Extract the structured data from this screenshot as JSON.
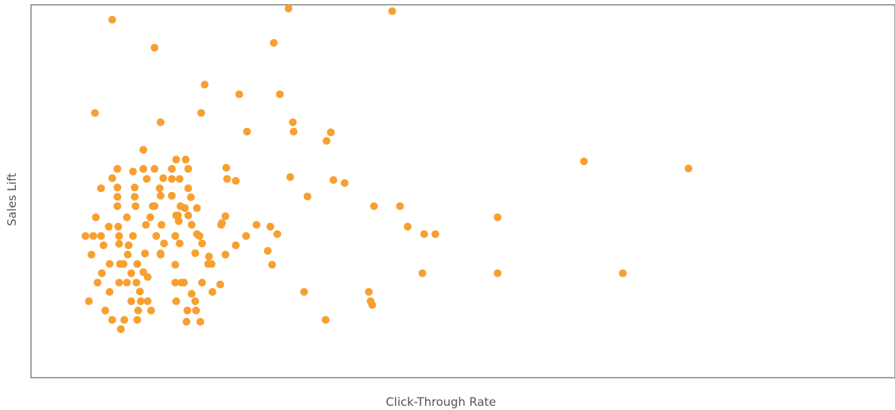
{
  "chart_data": {
    "type": "scatter",
    "title": "",
    "xlabel": "Click-Through Rate",
    "ylabel": "Sales Lift",
    "xlim": [
      0,
      1000
    ],
    "ylim": [
      0,
      1000
    ],
    "grid": false,
    "legend": "none",
    "marker_color": "#F7A030",
    "axis_color": "#333333",
    "label_color": "#555555",
    "series": [
      {
        "points": [
          [
            94,
            960
          ],
          [
            143,
            885
          ],
          [
            298,
            990
          ],
          [
            281,
            898
          ],
          [
            418,
            983
          ],
          [
            201,
            786
          ],
          [
            74,
            710
          ],
          [
            197,
            710
          ],
          [
            150,
            685
          ],
          [
            241,
            760
          ],
          [
            250,
            660
          ],
          [
            288,
            760
          ],
          [
            303,
            685
          ],
          [
            304,
            660
          ],
          [
            342,
            635
          ],
          [
            226,
            563
          ],
          [
            237,
            528
          ],
          [
            347,
            658
          ],
          [
            300,
            538
          ],
          [
            320,
            486
          ],
          [
            363,
            522
          ],
          [
            761,
            561
          ],
          [
            427,
            460
          ],
          [
            397,
            460
          ],
          [
            436,
            405
          ],
          [
            130,
            611
          ],
          [
            168,
            585
          ],
          [
            130,
            560
          ],
          [
            227,
            533
          ],
          [
            118,
            553
          ],
          [
            134,
            533
          ],
          [
            143,
            560
          ],
          [
            163,
            560
          ],
          [
            163,
            533
          ],
          [
            143,
            460
          ],
          [
            150,
            488
          ],
          [
            163,
            488
          ],
          [
            182,
            508
          ],
          [
            149,
            508
          ],
          [
            182,
            560
          ],
          [
            179,
            585
          ],
          [
            172,
            533
          ],
          [
            185,
            484
          ],
          [
            173,
            460
          ],
          [
            168,
            435
          ],
          [
            182,
            435
          ],
          [
            151,
            410
          ],
          [
            145,
            380
          ],
          [
            186,
            410
          ],
          [
            154,
            360
          ],
          [
            172,
            360
          ],
          [
            198,
            360
          ],
          [
            150,
            333
          ],
          [
            132,
            333
          ],
          [
            190,
            334
          ],
          [
            123,
            305
          ],
          [
            130,
            283
          ],
          [
            122,
            255
          ],
          [
            135,
            205
          ],
          [
            126,
            231
          ],
          [
            124,
            180
          ],
          [
            116,
            205
          ],
          [
            139,
            180
          ],
          [
            108,
            155
          ],
          [
            104,
            130
          ],
          [
            123,
            155
          ],
          [
            94,
            155
          ],
          [
            86,
            180
          ],
          [
            67,
            205
          ],
          [
            91,
            230
          ],
          [
            77,
            255
          ],
          [
            82,
            280
          ],
          [
            70,
            330
          ],
          [
            91,
            305
          ],
          [
            72,
            380
          ],
          [
            75,
            430
          ],
          [
            63,
            380
          ],
          [
            90,
            405
          ],
          [
            81,
            380
          ],
          [
            111,
            255
          ],
          [
            102,
            255
          ],
          [
            103,
            305
          ],
          [
            116,
            280
          ],
          [
            107,
            305
          ],
          [
            112,
            330
          ],
          [
            113,
            355
          ],
          [
            102,
            359
          ],
          [
            84,
            355
          ],
          [
            102,
            380
          ],
          [
            118,
            380
          ],
          [
            101,
            405
          ],
          [
            111,
            430
          ],
          [
            133,
            410
          ],
          [
            138,
            430
          ],
          [
            141,
            460
          ],
          [
            121,
            460
          ],
          [
            120,
            485
          ],
          [
            120,
            510
          ],
          [
            100,
            485
          ],
          [
            100,
            510
          ],
          [
            94,
            535
          ],
          [
            100,
            560
          ],
          [
            81,
            508
          ],
          [
            100,
            460
          ],
          [
            135,
            270
          ],
          [
            150,
            330
          ],
          [
            153,
            535
          ],
          [
            170,
            435
          ],
          [
            220,
            410
          ],
          [
            261,
            410
          ],
          [
            249,
            380
          ],
          [
            237,
            355
          ],
          [
            192,
            385
          ],
          [
            171,
            420
          ],
          [
            178,
            455
          ],
          [
            192,
            455
          ],
          [
            195,
            380
          ],
          [
            167,
            380
          ],
          [
            167,
            303
          ],
          [
            127,
            205
          ],
          [
            174,
            255
          ],
          [
            167,
            255
          ],
          [
            168,
            205
          ],
          [
            190,
            205
          ],
          [
            186,
            225
          ],
          [
            177,
            255
          ],
          [
            198,
            255
          ],
          [
            181,
            180
          ],
          [
            191,
            180
          ],
          [
            180,
            150
          ],
          [
            196,
            150
          ],
          [
            210,
            230
          ],
          [
            209,
            305
          ],
          [
            206,
            325
          ],
          [
            219,
            250
          ],
          [
            225,
            330
          ],
          [
            221,
            415
          ],
          [
            225,
            433
          ],
          [
            279,
            303
          ],
          [
            274,
            340
          ],
          [
            277,
            405
          ],
          [
            285,
            385
          ],
          [
            316,
            230
          ],
          [
            341,
            155
          ],
          [
            350,
            530
          ],
          [
            395,
            195
          ],
          [
            391,
            230
          ],
          [
            393,
            205
          ],
          [
            453,
            280
          ],
          [
            540,
            430
          ],
          [
            455,
            385
          ],
          [
            685,
            280
          ],
          [
            640,
            580
          ],
          [
            468,
            385
          ],
          [
            540,
            280
          ],
          [
            205,
            305
          ]
        ]
      }
    ]
  }
}
